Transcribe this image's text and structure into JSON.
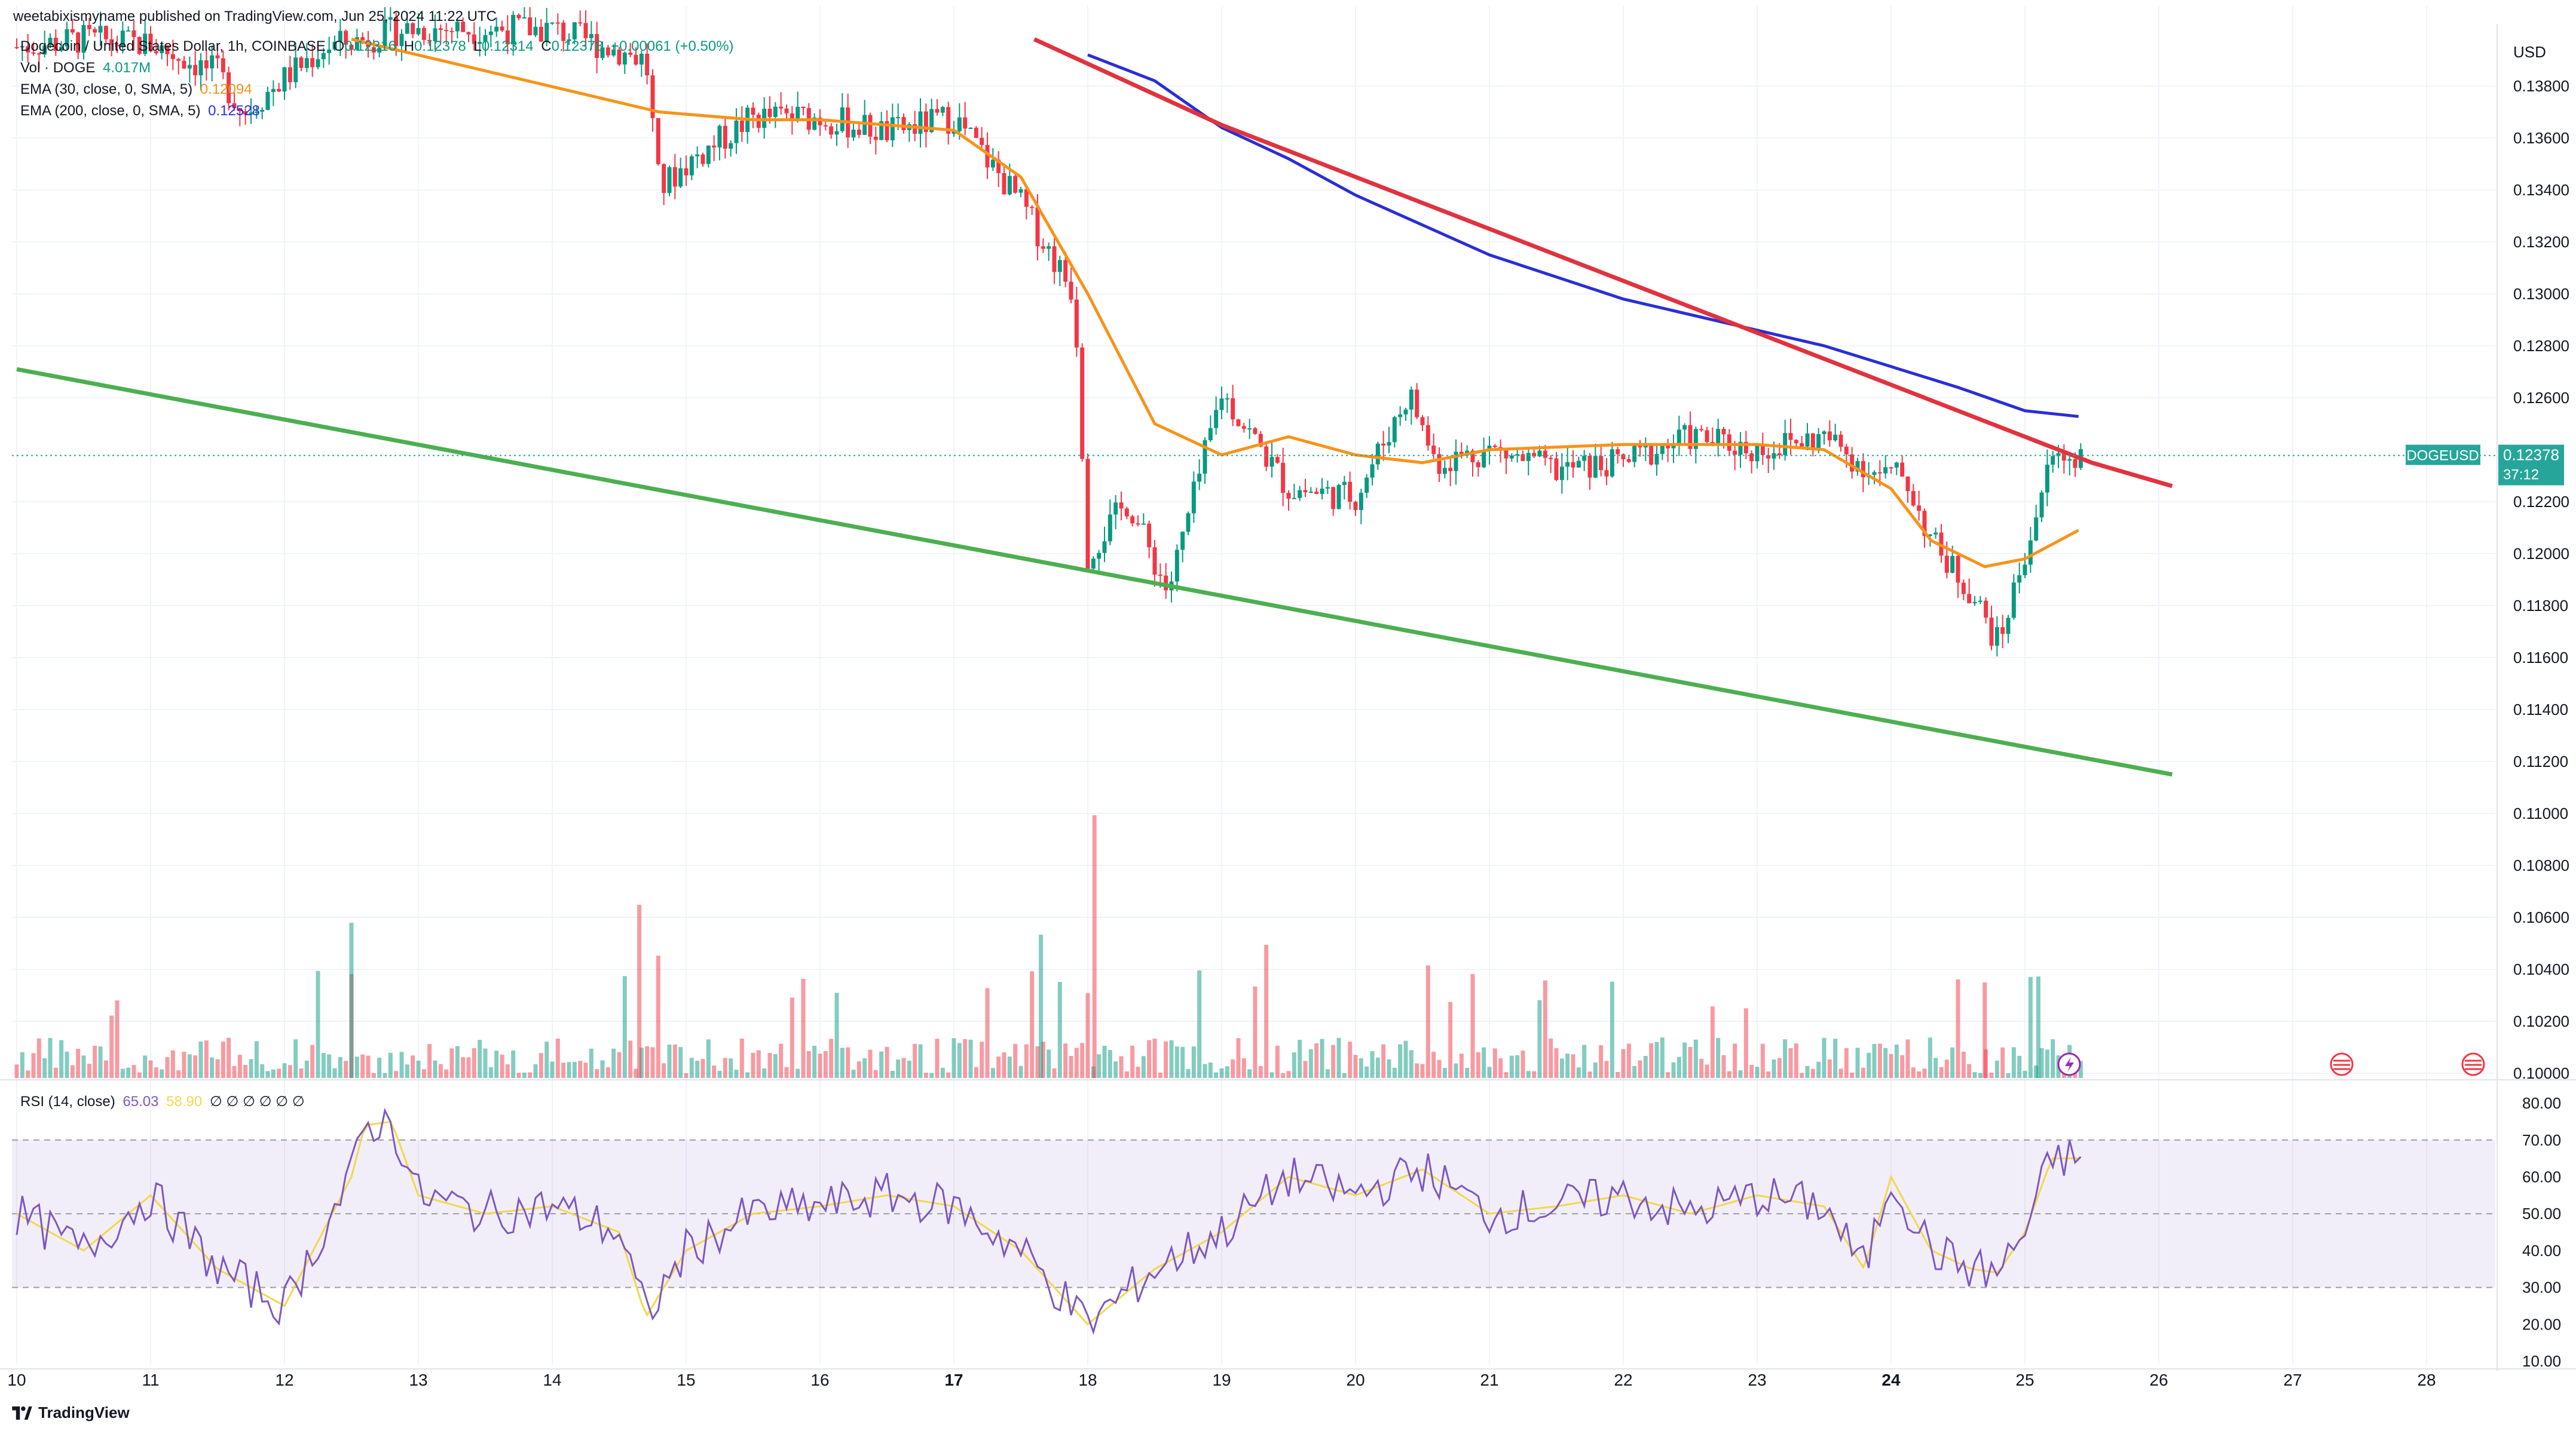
{
  "header": {
    "publisher": "weetabixismyname published on TradingView.com, Jun 25, 2024 11:22 UTC"
  },
  "symbol": {
    "title": "Dogecoin / United States Dollar, 1h, COINBASE",
    "o_label": "O",
    "o": "0.12316",
    "h_label": "H",
    "h": "0.12378",
    "l_label": "L",
    "l": "0.12314",
    "c_label": "C",
    "c": "0.12378",
    "change": "+0.00061 (+0.50%)"
  },
  "legend": {
    "vol_label": "Vol · DOGE",
    "vol_value": "4.017M",
    "ema30_label": "EMA (30, close, 0, SMA, 5)",
    "ema30_value": "0.12094",
    "ema200_label": "EMA (200, close, 0, SMA, 5)",
    "ema200_value": "0.12528",
    "rsi_label": "RSI (14, close)",
    "rsi_value": "65.03",
    "rsi_ma": "58.90",
    "rsi_extra": "∅ ∅ ∅ ∅ ∅ ∅"
  },
  "price_axis": {
    "currency": "USD",
    "ticks": [
      "0.13800",
      "0.13600",
      "0.13400",
      "0.13200",
      "0.13000",
      "0.12800",
      "0.12600",
      "0.12200",
      "0.12000",
      "0.11800",
      "0.11600",
      "0.11400",
      "0.11200",
      "0.11000",
      "0.10800",
      "0.10600",
      "0.10400",
      "0.10200",
      "0.10000"
    ],
    "current_symbol": "DOGEUSD",
    "current_price": "0.12378",
    "countdown": "37:12"
  },
  "rsi_axis": {
    "ticks": [
      "80.00",
      "70.00",
      "60.00",
      "50.00",
      "40.00",
      "30.00",
      "20.00",
      "10.00"
    ]
  },
  "time_axis": {
    "ticks": [
      "10",
      "11",
      "12",
      "13",
      "14",
      "15",
      "16",
      "17",
      "18",
      "19",
      "20",
      "21",
      "22",
      "23",
      "24",
      "25",
      "26",
      "27",
      "28"
    ]
  },
  "footer": {
    "brand": "TradingView"
  },
  "colors": {
    "up": "#089981",
    "down": "#f23645",
    "ema30": "#f7931a",
    "ema200": "#2a2ed6",
    "trend_red": "#e0333f",
    "trend_green": "#4caf50",
    "rsi": "#7e57c2",
    "rsi_ma": "#f2d84a",
    "badge": "#26a69a"
  },
  "chart_data": {
    "type": "candlestick",
    "symbol": "DOGEUSD",
    "interval": "1h",
    "x_axis": "June 2024 (day of month)",
    "price_range": [
      0.099,
      0.1395
    ],
    "rsi_range": [
      10,
      80
    ],
    "rsi_bands": [
      30,
      50,
      70
    ],
    "series": [
      {
        "name": "Dogecoin / United States Dollar (close)",
        "x": [
          10,
          10.5,
          11,
          11.5,
          11.7,
          12,
          12.3,
          12.6,
          12.9,
          14,
          14.7,
          14.8,
          15,
          15.5,
          16,
          16.5,
          17,
          17.5,
          17.9,
          18,
          18.3,
          18.6,
          19,
          19.5,
          20,
          20.4,
          20.6,
          21,
          21.5,
          22,
          22.5,
          23,
          23.5,
          23.9,
          24.1,
          24.3,
          24.6,
          24.8,
          25,
          25.2,
          25.4
        ],
        "values": [
          0.1395,
          0.1398,
          0.1396,
          0.1385,
          0.137,
          0.1383,
          0.1395,
          0.1398,
          0.1402,
          0.1402,
          0.139,
          0.134,
          0.135,
          0.1368,
          0.1368,
          0.1362,
          0.1368,
          0.1335,
          0.13,
          0.12,
          0.122,
          0.1185,
          0.1262,
          0.1225,
          0.1222,
          0.1262,
          0.1235,
          0.124,
          0.1232,
          0.1235,
          0.1245,
          0.124,
          0.1245,
          0.123,
          0.123,
          0.1205,
          0.1185,
          0.1165,
          0.12,
          0.1237,
          0.1238
        ]
      },
      {
        "name": "EMA (30, close, 0, SMA, 5)",
        "x": [
          12.5,
          14.8,
          15.5,
          16,
          17,
          17.5,
          18,
          18.5,
          19,
          19.5,
          20,
          20.5,
          21,
          22,
          23,
          23.5,
          24,
          24.3,
          24.7,
          25,
          25.4
        ],
        "values": [
          0.1398,
          0.137,
          0.1367,
          0.1367,
          0.1363,
          0.1345,
          0.13,
          0.125,
          0.1238,
          0.1245,
          0.1238,
          0.1235,
          0.124,
          0.1242,
          0.1242,
          0.124,
          0.1225,
          0.1205,
          0.1195,
          0.1198,
          0.1209
        ]
      },
      {
        "name": "EMA (200, close, 0, SMA, 5)",
        "x": [
          18,
          18.5,
          19,
          19.5,
          20,
          21,
          22,
          23,
          23.5,
          24,
          24.5,
          25,
          25.4
        ],
        "values": [
          0.1392,
          0.1382,
          0.1364,
          0.1352,
          0.1338,
          0.1315,
          0.1298,
          0.1286,
          0.128,
          0.1272,
          0.1264,
          0.1255,
          0.12528
        ]
      },
      {
        "name": "Resistance trendline",
        "x": [
          17.6,
          19,
          20,
          21,
          22,
          23,
          23.5,
          24,
          24.5,
          25,
          25.5,
          26.1
        ],
        "values": [
          0.1398,
          0.1365,
          0.1345,
          0.1325,
          0.1305,
          0.1285,
          0.1275,
          0.1265,
          0.1255,
          0.1245,
          0.1235,
          0.1226
        ]
      },
      {
        "name": "Support trendline",
        "x": [
          10,
          26.1
        ],
        "values": [
          0.1271,
          0.1115
        ]
      },
      {
        "name": "RSI (14, close)",
        "x": [
          10,
          10.5,
          11,
          11.5,
          12,
          12.5,
          12.6,
          12.8,
          13,
          13.5,
          14,
          14.5,
          14.7,
          15,
          15.5,
          16,
          16.5,
          17,
          17.5,
          18,
          18.5,
          19,
          19.5,
          20,
          20.5,
          21,
          21.5,
          22,
          22.5,
          23,
          23.5,
          23.8,
          24,
          24.3,
          24.6,
          24.8,
          25,
          25.2,
          25.4
        ],
        "values": [
          50,
          40,
          55,
          35,
          25,
          60,
          74,
          75,
          55,
          50,
          52,
          45,
          22,
          40,
          50,
          52,
          55,
          52,
          40,
          20,
          35,
          45,
          60,
          55,
          62,
          50,
          52,
          55,
          50,
          55,
          52,
          35,
          60,
          40,
          35,
          34,
          45,
          65,
          65.03
        ]
      }
    ]
  }
}
